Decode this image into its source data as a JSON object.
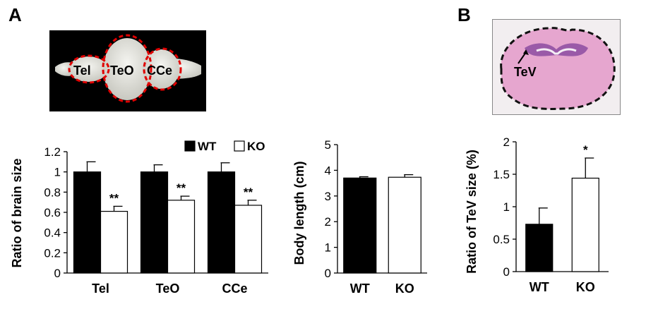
{
  "panels": {
    "a": {
      "letter": "A"
    },
    "b": {
      "letter": "B"
    }
  },
  "brain_photo": {
    "labels": {
      "tel": "Tel",
      "teo": "TeO",
      "cce": "CCe"
    },
    "outline_color": "#e00000"
  },
  "histology": {
    "label": "TeV"
  },
  "colors": {
    "wt": "#000000",
    "ko": "#ffffff"
  },
  "chart_data": [
    {
      "id": "brain-size",
      "type": "bar",
      "ylabel": "Ratio of  brain size",
      "xlabel": "",
      "categories": [
        "Tel",
        "TeO",
        "CCe"
      ],
      "ylim": [
        0,
        1.2
      ],
      "yticks": [
        "0",
        "0.2",
        "0.4",
        "0.6",
        "0.8",
        "1",
        "1.2"
      ],
      "legend": {
        "placement": "top-right",
        "entries": [
          "WT",
          "KO"
        ]
      },
      "series": [
        {
          "name": "WT",
          "values": [
            1.0,
            1.0,
            1.0
          ],
          "errors": [
            0.1,
            0.07,
            0.09
          ],
          "sig": [
            "",
            "",
            ""
          ]
        },
        {
          "name": "KO",
          "values": [
            0.61,
            0.72,
            0.67
          ],
          "errors": [
            0.05,
            0.04,
            0.05
          ],
          "sig": [
            "**",
            "**",
            "**"
          ]
        }
      ]
    },
    {
      "id": "body-length",
      "type": "bar",
      "ylabel": "Body length (cm)",
      "xlabel": "",
      "categories": [
        "WT",
        "KO"
      ],
      "ylim": [
        0,
        5
      ],
      "yticks": [
        "0",
        "1",
        "2",
        "3",
        "4",
        "5"
      ],
      "values": [
        3.7,
        3.73
      ],
      "errors": [
        0.05,
        0.1
      ],
      "sig": [
        "",
        ""
      ]
    },
    {
      "id": "tev-size",
      "type": "bar",
      "ylabel": "Ratio of TeV size (%)",
      "xlabel": "",
      "categories": [
        "WT",
        "KO"
      ],
      "ylim": [
        0,
        2
      ],
      "yticks": [
        "0",
        "0.5",
        "1",
        "1.5",
        "2"
      ],
      "values": [
        0.73,
        1.44
      ],
      "errors": [
        0.25,
        0.31
      ],
      "sig": [
        "",
        "*"
      ]
    }
  ]
}
